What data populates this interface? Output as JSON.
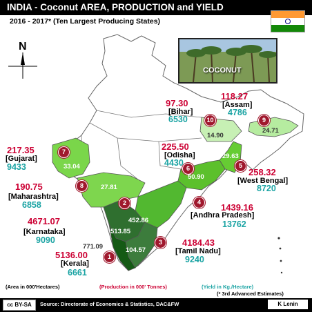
{
  "title": "INDIA - Coconut  AREA, PRODUCTION and  YIELD",
  "subtitle": "2016 - 2017* (Ten Largest Producing States)",
  "north_label": "N",
  "inset_label": "COCONUT",
  "states": [
    {
      "rank": "1",
      "name": "[Kerala]",
      "area": "771.09",
      "production": "5136.00",
      "production_sub": "6661",
      "yield": "",
      "color": "#145a14"
    },
    {
      "rank": "2",
      "name": "[Karnataka]",
      "area": "4671.07",
      "production": "9090",
      "yield": "513.85",
      "color": "#2f6f2f"
    },
    {
      "rank": "3",
      "name": "[Tamil Nadu]",
      "area": "4184.43",
      "production": "9240",
      "yield": "452.86",
      "color": "#3c7c3c"
    },
    {
      "rank": "4",
      "name": "[Andhra Pradesh]",
      "area": "1439.16",
      "production": "13762",
      "yield": "104.57",
      "color": "#52b830"
    },
    {
      "rank": "5",
      "name": "[West Bengal]",
      "area": "258.32",
      "production": "8720",
      "yield": "29.63",
      "color": "#66cc33"
    },
    {
      "rank": "6",
      "name": "[Odisha]",
      "area": "225.50",
      "production": "4430",
      "yield": "50.90",
      "color": "#5cc02c"
    },
    {
      "rank": "7",
      "name": "[Gujarat]",
      "area": "217.35",
      "production": "9433",
      "yield": "33.04",
      "color": "#7ad64a"
    },
    {
      "rank": "8",
      "name": "[Maharashtra]",
      "area": "190.75",
      "production": "6858",
      "yield": "27.81",
      "color": "#7ed64e"
    },
    {
      "rank": "9",
      "name": "[Assam]",
      "area": "118.27",
      "production": "4786",
      "yield": "24.71",
      "color": "#b6eca0"
    },
    {
      "rank": "10",
      "name": "[Bihar]",
      "area": "97.30",
      "production": "6530",
      "yield": "14.90",
      "color": "#c7f0b4"
    }
  ],
  "legend": {
    "area": "(Area in 000'Hectares)",
    "production": "(Production in 000' Tonnes)",
    "yield": "(Yield in Kg./Hectare)",
    "estimate": "(* 3rd Advanced Estimates)"
  },
  "footer": {
    "license": "cc BY-SA",
    "source": "Source: Directorate of Economics & Statistics, DAC&FW",
    "author": "K Lenin"
  },
  "colors": {
    "base_map": "#ffffff",
    "border": "#555555",
    "top_state": "#145a14",
    "light_state": "#c7f0b4"
  }
}
